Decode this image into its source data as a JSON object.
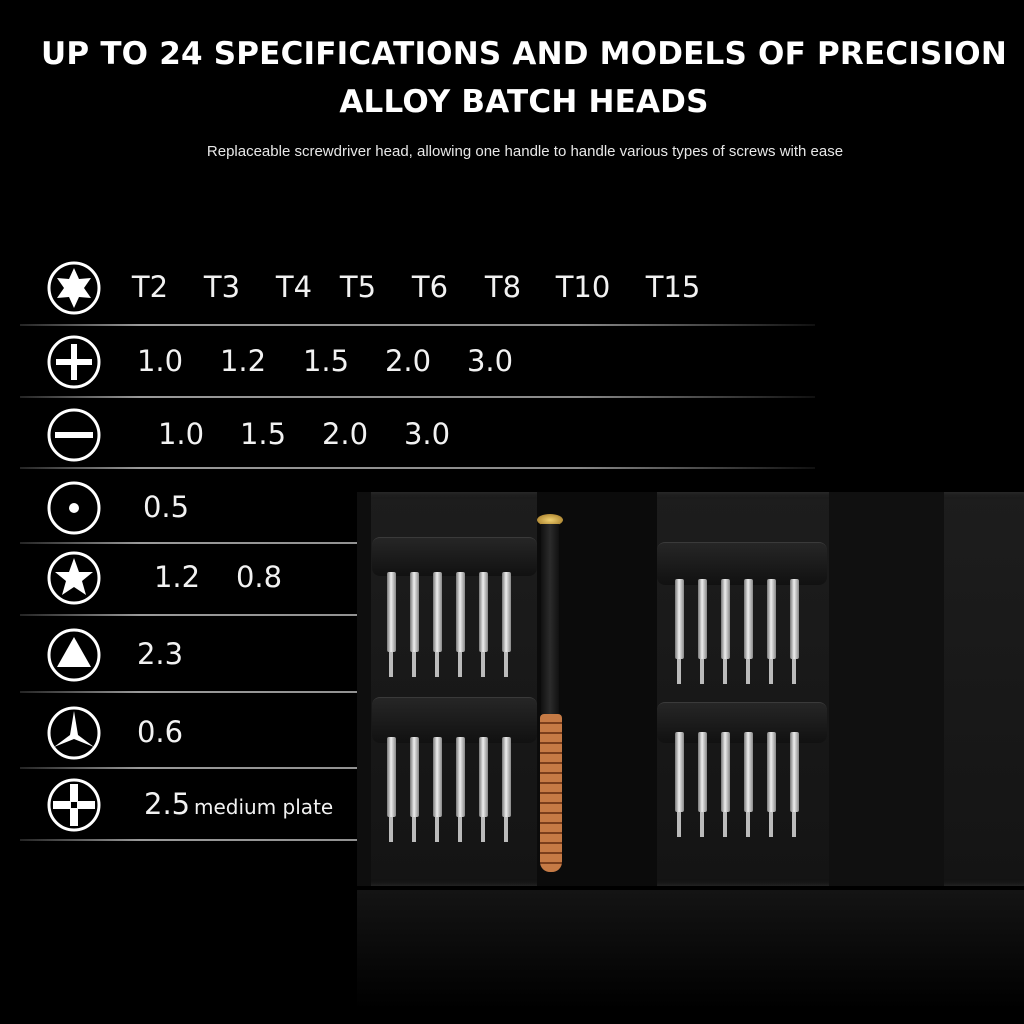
{
  "header": {
    "title_line1": "UP TO 24 SPECIFICATIONS AND MODELS OF PRECISION",
    "title_line2": "ALLOY BATCH HEADS",
    "subtitle": "Replaceable screwdriver head, allowing one handle to handle various types of screws with ease"
  },
  "spec_rows": [
    {
      "icon": "torx-icon",
      "values": [
        "T2",
        "T3",
        "T4",
        "T5",
        "T6",
        "T8",
        "T10",
        "T15"
      ]
    },
    {
      "icon": "phillips-icon",
      "values": [
        "1.0",
        "1.2",
        "1.5",
        "2.0",
        "3.0"
      ]
    },
    {
      "icon": "slotted-icon",
      "values": [
        "1.0",
        "1.5",
        "2.0",
        "3.0"
      ]
    },
    {
      "icon": "round-dot-icon",
      "values": [
        "0.5"
      ]
    },
    {
      "icon": "pentalobe-star-icon",
      "values": [
        "1.2",
        "0.8"
      ]
    },
    {
      "icon": "triangle-icon",
      "values": [
        "2.3"
      ]
    },
    {
      "icon": "tri-wing-icon",
      "values": [
        "0.6"
      ]
    },
    {
      "icon": "cross-plate-icon",
      "values": [
        "2.5"
      ],
      "note": "medium plate"
    }
  ],
  "colors": {
    "background": "#000000",
    "text": "#ffffff",
    "handle_copper": "#b46a3a",
    "cap_gold": "#c9a040"
  }
}
